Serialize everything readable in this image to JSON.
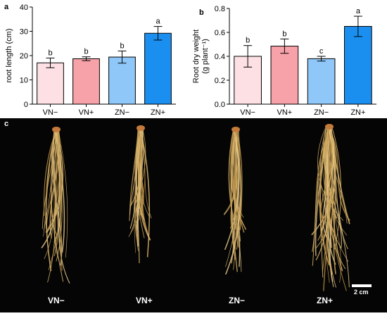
{
  "chart_data": [
    {
      "type": "bar",
      "panel": "a",
      "categories": [
        "VN−",
        "VN+",
        "ZN−",
        "ZN+"
      ],
      "values": [
        17,
        18.7,
        19.4,
        29.2
      ],
      "errors": [
        2.0,
        0.8,
        2.5,
        2.8
      ],
      "letters": [
        "b",
        "b",
        "b",
        "a"
      ],
      "colors": [
        "#fde0e4",
        "#f7a1a8",
        "#8fc7f9",
        "#1b8ff0"
      ],
      "ylabel": "root length (cm)",
      "ylim": [
        0,
        40
      ],
      "yticks": [
        0,
        10,
        20,
        30,
        40
      ]
    },
    {
      "type": "bar",
      "panel": "b",
      "categories": [
        "VN−",
        "VN+",
        "ZN−",
        "ZN+"
      ],
      "values": [
        0.4,
        0.485,
        0.38,
        0.65
      ],
      "errors": [
        0.09,
        0.06,
        0.02,
        0.085
      ],
      "letters": [
        "b",
        "b",
        "c",
        "a"
      ],
      "colors": [
        "#fde0e4",
        "#f7a1a8",
        "#8fc7f9",
        "#1b8ff0"
      ],
      "ylabel_line1": "Root dry weight",
      "ylabel_line2": "(g plant⁻¹)",
      "ylim": [
        0,
        0.8
      ],
      "yticks": [
        "0.0",
        "0.2",
        "0.4",
        "0.6",
        "0.8"
      ]
    }
  ],
  "photo": {
    "panel": "c",
    "labels": [
      "VN−",
      "VN+",
      "ZN−",
      "ZN+"
    ],
    "scale_label": "2 cm"
  }
}
